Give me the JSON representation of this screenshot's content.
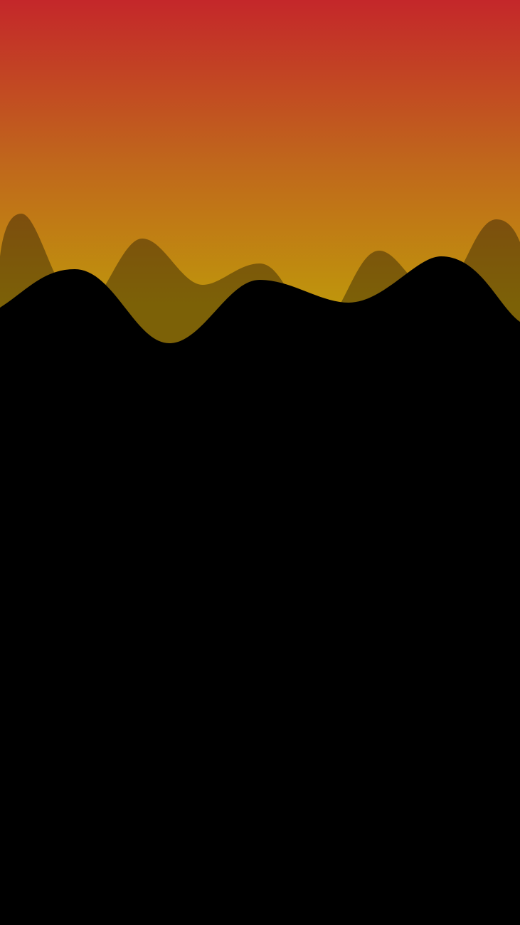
{
  "background": {
    "gradient_top_color": "#c4272a",
    "gradient_mid_color": "#c0661c",
    "gradient_bottom_color": "#bf950c",
    "base_color": "#000000"
  },
  "waves": [
    {
      "name": "back-wave",
      "fill_color": "#000000",
      "opacity": 0.35
    },
    {
      "name": "front-wave",
      "fill_color": "#000000",
      "opacity": 1.0
    }
  ]
}
